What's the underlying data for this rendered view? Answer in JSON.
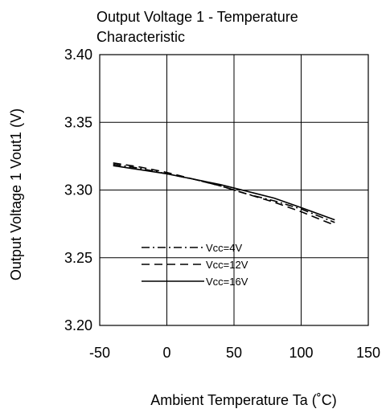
{
  "chart_data": {
    "type": "line",
    "title": "Output Voltage 1 - Temperature Characteristic",
    "title_lines": [
      "Output Voltage 1 - Temperature",
      "Characteristic"
    ],
    "xlabel": "Ambient Temperature Ta (˚C)",
    "ylabel": "Output Voltage 1 Vout1  (V)",
    "xlim": [
      -50,
      150
    ],
    "ylim": [
      3.2,
      3.4
    ],
    "x_ticks": [
      -50,
      0,
      50,
      100,
      150
    ],
    "y_ticks": [
      3.2,
      3.25,
      3.3,
      3.35,
      3.4
    ],
    "x_tick_labels": [
      "-50",
      "0",
      "50",
      "100",
      "150"
    ],
    "y_tick_labels": [
      "3.20",
      "3.25",
      "3.30",
      "3.35",
      "3.40"
    ],
    "grid": true,
    "legend_position": "lower-left",
    "series": [
      {
        "name": "Vcc=4V",
        "style": "dash-dot",
        "x": [
          -40,
          -20,
          0,
          20,
          40,
          60,
          80,
          100,
          125
        ],
        "y": [
          3.319,
          3.316,
          3.312,
          3.308,
          3.303,
          3.297,
          3.292,
          3.286,
          3.276
        ]
      },
      {
        "name": "Vcc=12V",
        "style": "dashed",
        "x": [
          -40,
          -20,
          0,
          20,
          40,
          60,
          80,
          100,
          125
        ],
        "y": [
          3.32,
          3.317,
          3.313,
          3.308,
          3.303,
          3.297,
          3.291,
          3.284,
          3.274
        ]
      },
      {
        "name": "Vcc=16V",
        "style": "solid",
        "x": [
          -40,
          -20,
          0,
          20,
          40,
          60,
          80,
          100,
          125
        ],
        "y": [
          3.318,
          3.315,
          3.312,
          3.308,
          3.304,
          3.299,
          3.294,
          3.287,
          3.278
        ]
      }
    ]
  }
}
